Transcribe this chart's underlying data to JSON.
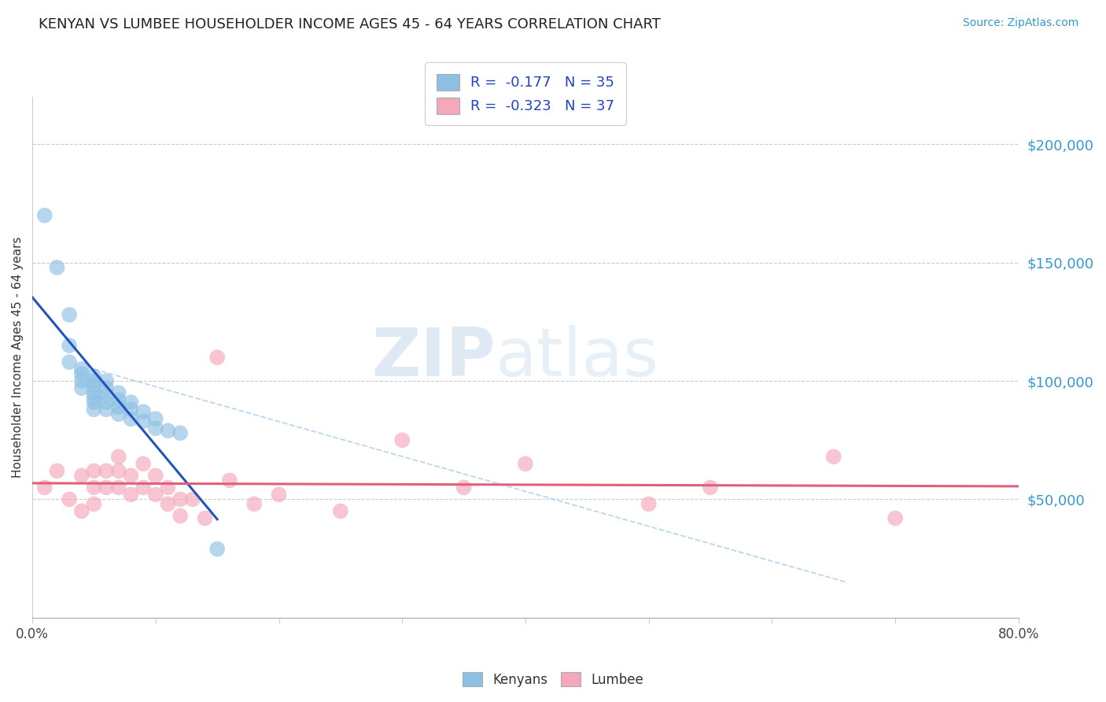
{
  "title": "KENYAN VS LUMBEE HOUSEHOLDER INCOME AGES 45 - 64 YEARS CORRELATION CHART",
  "source": "Source: ZipAtlas.com",
  "ylabel": "Householder Income Ages 45 - 64 years",
  "legend_entry1": "R =  -0.177   N = 35",
  "legend_entry2": "R =  -0.323   N = 37",
  "legend_label1": "Kenyans",
  "legend_label2": "Lumbee",
  "xmin": 0.0,
  "xmax": 0.8,
  "ymin": 0,
  "ymax": 220000,
  "yticks": [
    50000,
    100000,
    150000,
    200000
  ],
  "ytick_labels": [
    "$50,000",
    "$100,000",
    "$150,000",
    "$200,000"
  ],
  "blue_color": "#8ec0e4",
  "pink_color": "#f4a8ba",
  "trendline_blue": "#2255bb",
  "trendline_pink": "#e0607a",
  "trendline_gray": "#aaccee",
  "watermark_zip": "ZIP",
  "watermark_atlas": "atlas",
  "blue_scatter_x": [
    0.01,
    0.02,
    0.03,
    0.03,
    0.03,
    0.04,
    0.04,
    0.04,
    0.04,
    0.05,
    0.05,
    0.05,
    0.05,
    0.05,
    0.05,
    0.05,
    0.06,
    0.06,
    0.06,
    0.06,
    0.06,
    0.07,
    0.07,
    0.07,
    0.07,
    0.08,
    0.08,
    0.08,
    0.09,
    0.09,
    0.1,
    0.1,
    0.11,
    0.12,
    0.15
  ],
  "blue_scatter_y": [
    170000,
    148000,
    128000,
    115000,
    108000,
    105000,
    103000,
    100000,
    97000,
    102000,
    100000,
    98000,
    95000,
    93000,
    91000,
    88000,
    100000,
    97000,
    94000,
    91000,
    88000,
    95000,
    92000,
    89000,
    86000,
    91000,
    88000,
    84000,
    87000,
    83000,
    84000,
    80000,
    79000,
    78000,
    29000
  ],
  "pink_scatter_x": [
    0.01,
    0.02,
    0.03,
    0.04,
    0.04,
    0.05,
    0.05,
    0.05,
    0.06,
    0.06,
    0.07,
    0.07,
    0.07,
    0.08,
    0.08,
    0.09,
    0.09,
    0.1,
    0.1,
    0.11,
    0.11,
    0.12,
    0.12,
    0.13,
    0.14,
    0.15,
    0.16,
    0.18,
    0.2,
    0.25,
    0.3,
    0.35,
    0.4,
    0.5,
    0.55,
    0.65,
    0.7
  ],
  "pink_scatter_y": [
    55000,
    62000,
    50000,
    60000,
    45000,
    62000,
    55000,
    48000,
    62000,
    55000,
    68000,
    62000,
    55000,
    60000,
    52000,
    65000,
    55000,
    60000,
    52000,
    55000,
    48000,
    50000,
    43000,
    50000,
    42000,
    110000,
    58000,
    48000,
    52000,
    45000,
    75000,
    55000,
    65000,
    48000,
    55000,
    68000,
    42000
  ]
}
